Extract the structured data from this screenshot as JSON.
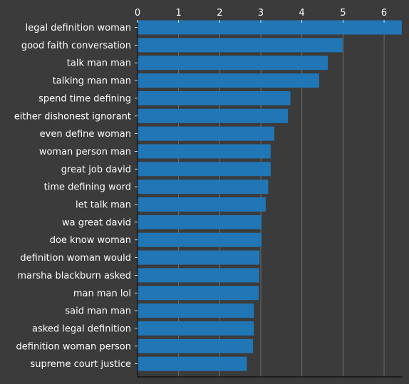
{
  "chart_data": {
    "type": "bar",
    "orientation": "horizontal",
    "title": "",
    "xlabel": "",
    "ylabel": "",
    "xlim": [
      0,
      6.45
    ],
    "x_ticks": [
      "0",
      "1",
      "2",
      "3",
      "4",
      "5",
      "6"
    ],
    "x_axis_position": "top",
    "grid": "vertical",
    "categories": [
      "legal definition woman",
      "good faith conversation",
      "talk man man",
      "talking man man",
      "spend time defining",
      "either dishonest ignorant",
      "even define woman",
      "woman person man",
      "great job david",
      "time defining word",
      "let talk man",
      "wa great david",
      "doe know woman",
      "definition woman would",
      "marsha blackburn asked",
      "man man lol",
      "said man man",
      "asked legal definition",
      "definition woman person",
      "supreme court justice"
    ],
    "values": [
      6.43,
      4.99,
      4.63,
      4.42,
      3.72,
      3.66,
      3.33,
      3.24,
      3.24,
      3.18,
      3.12,
      3.02,
      3.02,
      2.97,
      2.96,
      2.95,
      2.83,
      2.83,
      2.81,
      2.66
    ],
    "colors": {
      "background": "#3b3b3b",
      "bar": "#2176b6",
      "text": "#ffffff",
      "grid": "#7a7a7a",
      "axis": "#000000"
    }
  }
}
